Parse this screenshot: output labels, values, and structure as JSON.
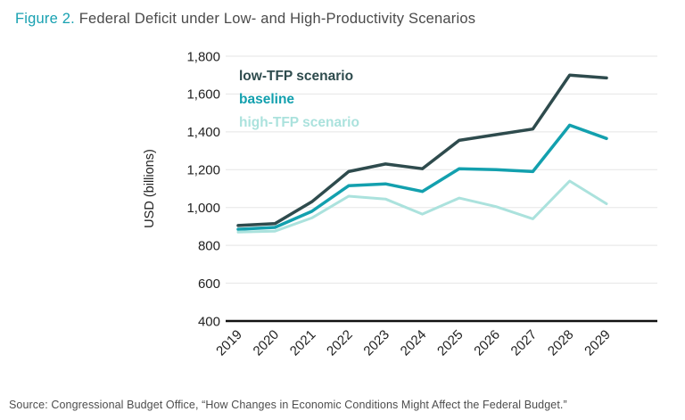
{
  "page": {
    "title_prefix": "Figure 2.",
    "title_rest": " Federal Deficit under Low- and High-Productivity Scenarios",
    "source": "Source: Congressional Budget Office, “How Changes in Economic Conditions Might Affect the Federal Budget.”"
  },
  "colors": {
    "accent_teal": "#18a1b1",
    "title_text": "#4a4a4a",
    "gridline": "#e5e5e5",
    "axis": "#111111",
    "low_tfp": "#2e4b4d",
    "baseline": "#13a0ae",
    "high_tfp": "#abe2dd"
  },
  "chart_data": {
    "type": "line",
    "title": "Federal Deficit under Low- and High-Productivity Scenarios",
    "xlabel": "",
    "ylabel": "USD (billions)",
    "ylim": [
      400,
      1800
    ],
    "ytick_step": 200,
    "grid": "horizontal",
    "legend_position": "top-left-inside",
    "categories": [
      "2019",
      "2020",
      "2021",
      "2022",
      "2023",
      "2024",
      "2025",
      "2026",
      "2027",
      "2028",
      "2029"
    ],
    "series": [
      {
        "name": "low-TFP scenario",
        "color": "#2e4b4d",
        "values": [
          905,
          915,
          1030,
          1190,
          1230,
          1205,
          1355,
          1385,
          1415,
          1700,
          1685
        ]
      },
      {
        "name": "baseline",
        "color": "#13a0ae",
        "values": [
          885,
          895,
          980,
          1115,
          1125,
          1085,
          1205,
          1200,
          1190,
          1435,
          1365
        ]
      },
      {
        "name": "high-TFP scenario",
        "color": "#abe2dd",
        "values": [
          870,
          875,
          945,
          1060,
          1045,
          965,
          1050,
          1005,
          940,
          1140,
          1020
        ]
      }
    ]
  }
}
